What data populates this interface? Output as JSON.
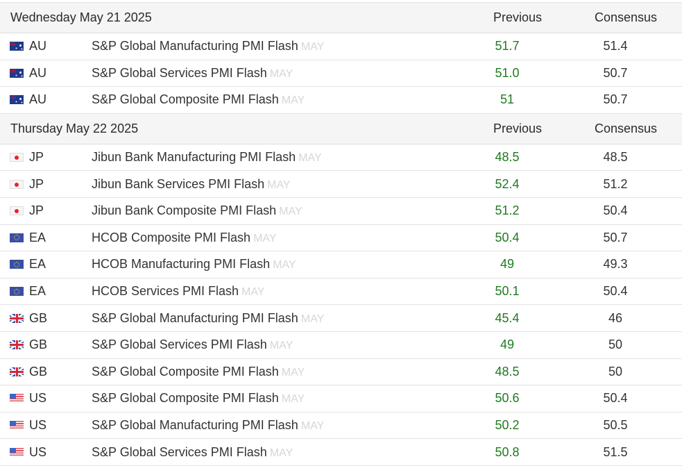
{
  "columns": {
    "previous": "Previous",
    "consensus": "Consensus"
  },
  "colors": {
    "previous_value": "#1f7a1f",
    "period_tag": "#d6d6d6",
    "header_bg": "#f5f5f5"
  },
  "groups": [
    {
      "date": "Wednesday May 21 2025",
      "rows": [
        {
          "country": "AU",
          "flag": "australia-flag-icon",
          "event": "S&P Global Manufacturing PMI Flash",
          "period": "MAY",
          "previous": "51.7",
          "consensus": "51.4"
        },
        {
          "country": "AU",
          "flag": "australia-flag-icon",
          "event": "S&P Global Services PMI Flash",
          "period": "MAY",
          "previous": "51.0",
          "consensus": "50.7"
        },
        {
          "country": "AU",
          "flag": "australia-flag-icon",
          "event": "S&P Global Composite PMI Flash",
          "period": "MAY",
          "previous": "51",
          "consensus": "50.7"
        }
      ]
    },
    {
      "date": "Thursday May 22 2025",
      "rows": [
        {
          "country": "JP",
          "flag": "japan-flag-icon",
          "event": "Jibun Bank Manufacturing PMI Flash",
          "period": "MAY",
          "previous": "48.5",
          "consensus": "48.5"
        },
        {
          "country": "JP",
          "flag": "japan-flag-icon",
          "event": "Jibun Bank Services PMI Flash",
          "period": "MAY",
          "previous": "52.4",
          "consensus": "51.2"
        },
        {
          "country": "JP",
          "flag": "japan-flag-icon",
          "event": "Jibun Bank Composite PMI Flash",
          "period": "MAY",
          "previous": "51.2",
          "consensus": "50.4"
        },
        {
          "country": "EA",
          "flag": "euro-area-flag-icon",
          "event": "HCOB Composite PMI Flash",
          "period": "MAY",
          "previous": "50.4",
          "consensus": "50.7"
        },
        {
          "country": "EA",
          "flag": "euro-area-flag-icon",
          "event": "HCOB Manufacturing PMI Flash",
          "period": "MAY",
          "previous": "49",
          "consensus": "49.3"
        },
        {
          "country": "EA",
          "flag": "euro-area-flag-icon",
          "event": "HCOB Services PMI Flash",
          "period": "MAY",
          "previous": "50.1",
          "consensus": "50.4"
        },
        {
          "country": "GB",
          "flag": "uk-flag-icon",
          "event": "S&P Global Manufacturing PMI Flash",
          "period": "MAY",
          "previous": "45.4",
          "consensus": "46"
        },
        {
          "country": "GB",
          "flag": "uk-flag-icon",
          "event": "S&P Global Services PMI Flash",
          "period": "MAY",
          "previous": "49",
          "consensus": "50"
        },
        {
          "country": "GB",
          "flag": "uk-flag-icon",
          "event": "S&P Global Composite PMI Flash",
          "period": "MAY",
          "previous": "48.5",
          "consensus": "50"
        },
        {
          "country": "US",
          "flag": "us-flag-icon",
          "event": "S&P Global Composite PMI Flash",
          "period": "MAY",
          "previous": "50.6",
          "consensus": "50.4"
        },
        {
          "country": "US",
          "flag": "us-flag-icon",
          "event": "S&P Global Manufacturing PMI Flash",
          "period": "MAY",
          "previous": "50.2",
          "consensus": "50.5"
        },
        {
          "country": "US",
          "flag": "us-flag-icon",
          "event": "S&P Global Services PMI Flash",
          "period": "MAY",
          "previous": "50.8",
          "consensus": "51.5"
        }
      ]
    }
  ]
}
